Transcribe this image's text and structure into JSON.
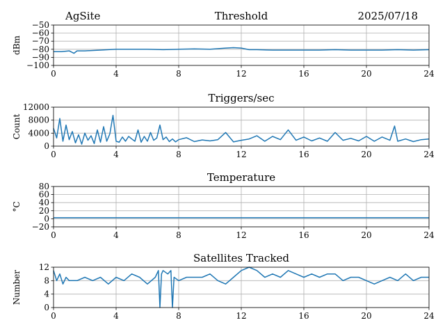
{
  "header": {
    "site": "AgSite",
    "date": "2025/07/18"
  },
  "colors": {
    "series": "#1f77b4"
  },
  "chart_data": [
    {
      "type": "line",
      "title": "Threshold",
      "ylabel": "dBm",
      "xlim": [
        0,
        24
      ],
      "ylim": [
        -100,
        -50
      ],
      "xticks": [
        0,
        4,
        8,
        12,
        16,
        20,
        24
      ],
      "yticks": [
        -100,
        -90,
        -80,
        -70,
        -60,
        -50
      ],
      "ytick_labels": [
        "−100",
        "−90",
        "−80",
        "−70",
        "−60",
        "−50"
      ],
      "grid": true,
      "x": [
        0,
        0.5,
        1.0,
        1.3,
        1.5,
        2,
        3,
        4,
        5,
        6,
        7,
        8,
        9,
        10,
        11,
        11.5,
        12,
        12.5,
        13,
        14,
        15,
        16,
        17,
        18,
        19,
        20,
        21,
        22,
        23,
        24
      ],
      "y": [
        -83,
        -83,
        -82,
        -85,
        -82,
        -82,
        -81,
        -80,
        -80,
        -80,
        -80.5,
        -80,
        -79.5,
        -80,
        -78.5,
        -78,
        -78.5,
        -80.5,
        -80.5,
        -81,
        -81,
        -81,
        -81,
        -80.5,
        -81,
        -81,
        -81,
        -80.5,
        -81,
        -80.5
      ]
    },
    {
      "type": "line",
      "title": "Triggers/sec",
      "ylabel": "Count",
      "xlim": [
        0,
        24
      ],
      "ylim": [
        0,
        12000
      ],
      "xticks": [
        0,
        4,
        8,
        12,
        16,
        20,
        24
      ],
      "yticks": [
        0,
        4000,
        8000,
        12000
      ],
      "grid": true,
      "x": [
        0,
        0.2,
        0.4,
        0.6,
        0.8,
        1.0,
        1.2,
        1.4,
        1.6,
        1.8,
        2.0,
        2.2,
        2.4,
        2.6,
        2.8,
        3.0,
        3.2,
        3.4,
        3.6,
        3.8,
        4.0,
        4.2,
        4.4,
        4.6,
        4.8,
        5.0,
        5.2,
        5.4,
        5.6,
        5.8,
        6.0,
        6.2,
        6.4,
        6.6,
        6.8,
        7.0,
        7.2,
        7.4,
        7.6,
        7.8,
        8.0,
        8.5,
        9.0,
        9.5,
        10.0,
        10.5,
        11.0,
        11.5,
        12.0,
        12.5,
        13.0,
        13.5,
        14.0,
        14.5,
        15.0,
        15.5,
        16.0,
        16.5,
        17.0,
        17.5,
        18.0,
        18.5,
        19.0,
        19.5,
        20.0,
        20.5,
        21.0,
        21.5,
        21.8,
        22.0,
        22.5,
        23.0,
        23.5,
        24.0
      ],
      "y": [
        5500,
        2500,
        8500,
        1500,
        6500,
        2000,
        4500,
        1000,
        3500,
        600,
        4000,
        1800,
        3200,
        800,
        5000,
        1200,
        6000,
        1500,
        3800,
        9500,
        1500,
        1200,
        2800,
        1500,
        3000,
        2200,
        1500,
        5000,
        1200,
        3000,
        1500,
        4200,
        1800,
        2500,
        6500,
        2000,
        2800,
        1400,
        2200,
        1300,
        2000,
        2600,
        1400,
        1900,
        1600,
        2000,
        4200,
        1300,
        1800,
        2200,
        3200,
        1500,
        3000,
        2000,
        5000,
        1800,
        2800,
        1600,
        2500,
        1500,
        4200,
        1800,
        2400,
        1600,
        3000,
        1500,
        2800,
        1800,
        6200,
        1500,
        2200,
        1400,
        2000,
        2200
      ]
    },
    {
      "type": "line",
      "title": "Temperature",
      "ylabel": "°C",
      "xlim": [
        0,
        24
      ],
      "ylim": [
        -20,
        80
      ],
      "xticks": [
        0,
        4,
        8,
        12,
        16,
        20,
        24
      ],
      "yticks": [
        -20,
        0,
        20,
        40,
        60,
        80
      ],
      "ytick_labels": [
        "−20",
        "0",
        "20",
        "40",
        "60",
        "80"
      ],
      "grid": true,
      "x": [
        0,
        24
      ],
      "y": [
        2.5,
        2.5
      ]
    },
    {
      "type": "line",
      "title": "Satellites Tracked",
      "ylabel": "Number",
      "xlim": [
        0,
        24
      ],
      "ylim": [
        0,
        12
      ],
      "xticks": [
        0,
        4,
        8,
        12,
        16,
        20,
        24
      ],
      "yticks": [
        0,
        4,
        8,
        12
      ],
      "grid": true,
      "x": [
        0,
        0.2,
        0.4,
        0.6,
        0.8,
        1.0,
        1.5,
        2.0,
        2.5,
        3.0,
        3.5,
        4.0,
        4.5,
        5.0,
        5.5,
        6.0,
        6.5,
        6.7,
        6.8,
        6.9,
        7.0,
        7.3,
        7.5,
        7.6,
        7.7,
        8.0,
        8.5,
        9.0,
        9.5,
        10.0,
        10.5,
        11.0,
        11.5,
        12.0,
        12.5,
        13.0,
        13.5,
        14.0,
        14.5,
        15.0,
        15.5,
        16.0,
        16.5,
        17.0,
        17.5,
        18.0,
        18.5,
        19.0,
        19.5,
        20.0,
        20.5,
        21.0,
        21.5,
        22.0,
        22.5,
        23.0,
        23.5,
        24.0
      ],
      "y": [
        11,
        8,
        10,
        7,
        9,
        8,
        8,
        9,
        8,
        9,
        7,
        9,
        8,
        10,
        9,
        7,
        9,
        11,
        0,
        10,
        11,
        10,
        11,
        0,
        9,
        8,
        9,
        9,
        9,
        10,
        8,
        7,
        9,
        11,
        12,
        11,
        9,
        10,
        9,
        11,
        10,
        9,
        10,
        9,
        10,
        10,
        8,
        9,
        9,
        8,
        7,
        8,
        9,
        8,
        10,
        8,
        9,
        9
      ]
    }
  ]
}
